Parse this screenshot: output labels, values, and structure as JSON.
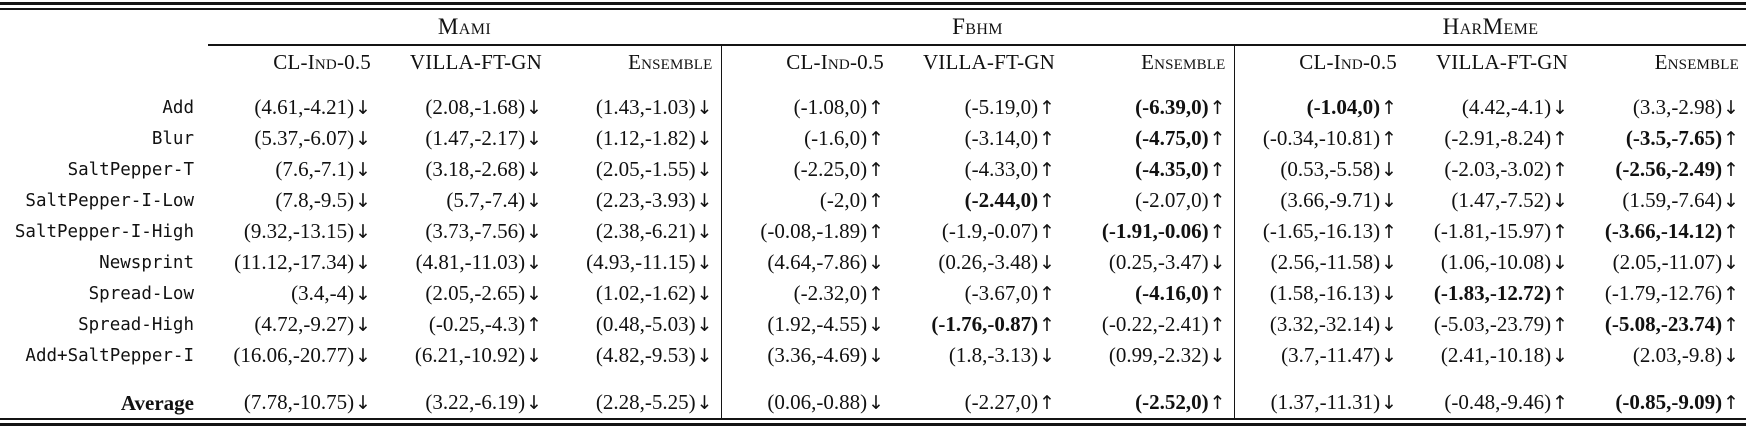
{
  "colors": {
    "text": "#111111",
    "rule": "#141414",
    "background": "#ffffff"
  },
  "table": {
    "groups": [
      {
        "label": "Mami",
        "columns": [
          "CL-Ind-0.5",
          "VILLA-FT-GN",
          "Ensemble"
        ]
      },
      {
        "label": "Fbhm",
        "columns": [
          "CL-Ind-0.5",
          "VILLA-FT-GN",
          "Ensemble"
        ]
      },
      {
        "label": "HarMeme",
        "columns": [
          "CL-Ind-0.5",
          "VILLA-FT-GN",
          "Ensemble"
        ]
      }
    ],
    "rows": [
      {
        "label": "Add",
        "average": false,
        "cells": [
          {
            "v": "(4.61,-4.21)",
            "a": "↓",
            "b": false
          },
          {
            "v": "(2.08,-1.68)",
            "a": "↓",
            "b": false
          },
          {
            "v": "(1.43,-1.03)",
            "a": "↓",
            "b": false
          },
          {
            "v": "(-1.08,0)",
            "a": "↑",
            "b": false
          },
          {
            "v": "(-5.19,0)",
            "a": "↑",
            "b": false
          },
          {
            "v": "(-6.39,0)",
            "a": "↑",
            "b": true
          },
          {
            "v": "(-1.04,0)",
            "a": "↑",
            "b": true
          },
          {
            "v": "(4.42,-4.1)",
            "a": "↓",
            "b": false
          },
          {
            "v": "(3.3,-2.98)",
            "a": "↓",
            "b": false
          }
        ]
      },
      {
        "label": "Blur",
        "average": false,
        "cells": [
          {
            "v": "(5.37,-6.07)",
            "a": "↓",
            "b": false
          },
          {
            "v": "(1.47,-2.17)",
            "a": "↓",
            "b": false
          },
          {
            "v": "(1.12,-1.82)",
            "a": "↓",
            "b": false
          },
          {
            "v": "(-1.6,0)",
            "a": "↑",
            "b": false
          },
          {
            "v": "(-3.14,0)",
            "a": "↑",
            "b": false
          },
          {
            "v": "(-4.75,0)",
            "a": "↑",
            "b": true
          },
          {
            "v": "(-0.34,-10.81)",
            "a": "↑",
            "b": false
          },
          {
            "v": "(-2.91,-8.24)",
            "a": "↑",
            "b": false
          },
          {
            "v": "(-3.5,-7.65)",
            "a": "↑",
            "b": true
          }
        ]
      },
      {
        "label": "SaltPepper-T",
        "average": false,
        "cells": [
          {
            "v": "(7.6,-7.1)",
            "a": "↓",
            "b": false
          },
          {
            "v": "(3.18,-2.68)",
            "a": "↓",
            "b": false
          },
          {
            "v": "(2.05,-1.55)",
            "a": "↓",
            "b": false
          },
          {
            "v": "(-2.25,0)",
            "a": "↑",
            "b": false
          },
          {
            "v": "(-4.33,0)",
            "a": "↑",
            "b": false
          },
          {
            "v": "(-4.35,0)",
            "a": "↑",
            "b": true
          },
          {
            "v": "(0.53,-5.58)",
            "a": "↓",
            "b": false
          },
          {
            "v": "(-2.03,-3.02)",
            "a": "↑",
            "b": false
          },
          {
            "v": "(-2.56,-2.49)",
            "a": "↑",
            "b": true
          }
        ]
      },
      {
        "label": "SaltPepper-I-Low",
        "average": false,
        "cells": [
          {
            "v": "(7.8,-9.5)",
            "a": "↓",
            "b": false
          },
          {
            "v": "(5.7,-7.4)",
            "a": "↓",
            "b": false
          },
          {
            "v": "(2.23,-3.93)",
            "a": "↓",
            "b": false
          },
          {
            "v": "(-2,0)",
            "a": "↑",
            "b": false
          },
          {
            "v": "(-2.44,0)",
            "a": "↑",
            "b": true
          },
          {
            "v": "(-2.07,0)",
            "a": "↑",
            "b": false
          },
          {
            "v": "(3.66,-9.71)",
            "a": "↓",
            "b": false
          },
          {
            "v": "(1.47,-7.52)",
            "a": "↓",
            "b": false
          },
          {
            "v": "(1.59,-7.64)",
            "a": "↓",
            "b": false
          }
        ]
      },
      {
        "label": "SaltPepper-I-High",
        "average": false,
        "cells": [
          {
            "v": "(9.32,-13.15)",
            "a": "↓",
            "b": false
          },
          {
            "v": "(3.73,-7.56)",
            "a": "↓",
            "b": false
          },
          {
            "v": "(2.38,-6.21)",
            "a": "↓",
            "b": false
          },
          {
            "v": "(-0.08,-1.89)",
            "a": "↑",
            "b": false
          },
          {
            "v": "(-1.9,-0.07)",
            "a": "↑",
            "b": false
          },
          {
            "v": "(-1.91,-0.06)",
            "a": "↑",
            "b": true
          },
          {
            "v": "(-1.65,-16.13)",
            "a": "↑",
            "b": false
          },
          {
            "v": "(-1.81,-15.97)",
            "a": "↑",
            "b": false
          },
          {
            "v": "(-3.66,-14.12)",
            "a": "↑",
            "b": true
          }
        ]
      },
      {
        "label": "Newsprint",
        "average": false,
        "cells": [
          {
            "v": "(11.12,-17.34)",
            "a": "↓",
            "b": false
          },
          {
            "v": "(4.81,-11.03)",
            "a": "↓",
            "b": false
          },
          {
            "v": "(4.93,-11.15)",
            "a": "↓",
            "b": false
          },
          {
            "v": "(4.64,-7.86)",
            "a": "↓",
            "b": false
          },
          {
            "v": "(0.26,-3.48)",
            "a": "↓",
            "b": false
          },
          {
            "v": "(0.25,-3.47)",
            "a": "↓",
            "b": false
          },
          {
            "v": "(2.56,-11.58)",
            "a": "↓",
            "b": false
          },
          {
            "v": "(1.06,-10.08)",
            "a": "↓",
            "b": false
          },
          {
            "v": "(2.05,-11.07)",
            "a": "↓",
            "b": false
          }
        ]
      },
      {
        "label": "Spread-Low",
        "average": false,
        "cells": [
          {
            "v": "(3.4,-4)",
            "a": "↓",
            "b": false
          },
          {
            "v": "(2.05,-2.65)",
            "a": "↓",
            "b": false
          },
          {
            "v": "(1.02,-1.62)",
            "a": "↓",
            "b": false
          },
          {
            "v": "(-2.32,0)",
            "a": "↑",
            "b": false
          },
          {
            "v": "(-3.67,0)",
            "a": "↑",
            "b": false
          },
          {
            "v": "(-4.16,0)",
            "a": "↑",
            "b": true
          },
          {
            "v": "(1.58,-16.13)",
            "a": "↓",
            "b": false
          },
          {
            "v": "(-1.83,-12.72)",
            "a": "↑",
            "b": true
          },
          {
            "v": "(-1.79,-12.76)",
            "a": "↑",
            "b": false
          }
        ]
      },
      {
        "label": "Spread-High",
        "average": false,
        "cells": [
          {
            "v": "(4.72,-9.27)",
            "a": "↓",
            "b": false
          },
          {
            "v": "(-0.25,-4.3)",
            "a": "↑",
            "b": false
          },
          {
            "v": "(0.48,-5.03)",
            "a": "↓",
            "b": false
          },
          {
            "v": "(1.92,-4.55)",
            "a": "↓",
            "b": false
          },
          {
            "v": "(-1.76,-0.87)",
            "a": "↑",
            "b": true
          },
          {
            "v": "(-0.22,-2.41)",
            "a": "↑",
            "b": false
          },
          {
            "v": "(3.32,-32.14)",
            "a": "↓",
            "b": false
          },
          {
            "v": "(-5.03,-23.79)",
            "a": "↑",
            "b": false
          },
          {
            "v": "(-5.08,-23.74)",
            "a": "↑",
            "b": true
          }
        ]
      },
      {
        "label": "Add+SaltPepper-I",
        "average": false,
        "cells": [
          {
            "v": "(16.06,-20.77)",
            "a": "↓",
            "b": false
          },
          {
            "v": "(6.21,-10.92)",
            "a": "↓",
            "b": false
          },
          {
            "v": "(4.82,-9.53)",
            "a": "↓",
            "b": false
          },
          {
            "v": "(3.36,-4.69)",
            "a": "↓",
            "b": false
          },
          {
            "v": "(1.8,-3.13)",
            "a": "↓",
            "b": false
          },
          {
            "v": "(0.99,-2.32)",
            "a": "↓",
            "b": false
          },
          {
            "v": "(3.7,-11.47)",
            "a": "↓",
            "b": false
          },
          {
            "v": "(2.41,-10.18)",
            "a": "↓",
            "b": false
          },
          {
            "v": "(2.03,-9.8)",
            "a": "↓",
            "b": false
          }
        ]
      },
      {
        "label": "Average",
        "average": true,
        "cells": [
          {
            "v": "(7.78,-10.75)",
            "a": "↓",
            "b": false
          },
          {
            "v": "(3.22,-6.19)",
            "a": "↓",
            "b": false
          },
          {
            "v": "(2.28,-5.25)",
            "a": "↓",
            "b": false
          },
          {
            "v": "(0.06,-0.88)",
            "a": "↓",
            "b": false
          },
          {
            "v": "(-2.27,0)",
            "a": "↑",
            "b": false
          },
          {
            "v": "(-2.52,0)",
            "a": "↑",
            "b": true
          },
          {
            "v": "(1.37,-11.31)",
            "a": "↓",
            "b": false
          },
          {
            "v": "(-0.48,-9.46)",
            "a": "↑",
            "b": false
          },
          {
            "v": "(-0.85,-9.09)",
            "a": "↑",
            "b": true
          }
        ]
      }
    ]
  }
}
